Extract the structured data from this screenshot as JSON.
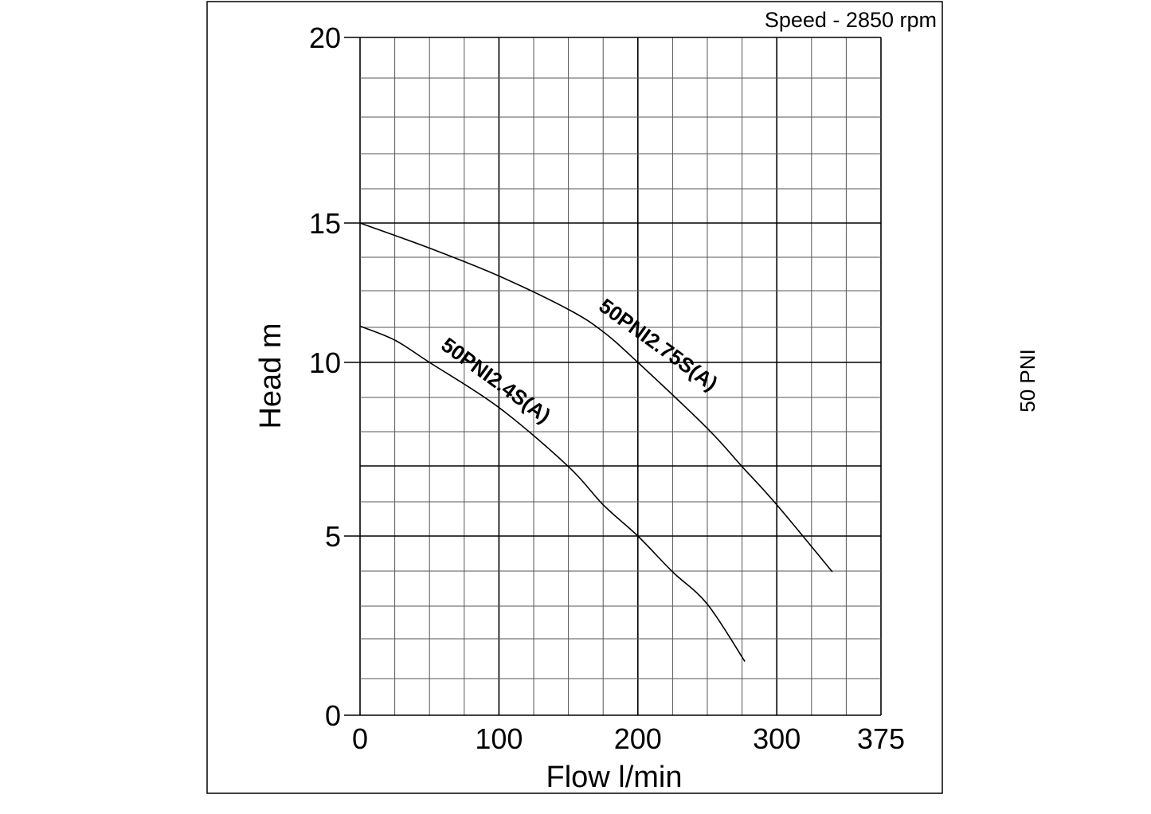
{
  "chart_data": {
    "type": "line",
    "title": "",
    "annotation": "Speed - 2850 rpm",
    "side_label": "50 PNI",
    "xlabel": "Flow l/min",
    "ylabel": "Head m",
    "xlim": [
      0,
      375
    ],
    "ylim": [
      0,
      20
    ],
    "x_ticks": [
      "0",
      "100",
      "200",
      "300",
      "375"
    ],
    "x_tick_values": [
      0,
      100,
      200,
      300,
      375
    ],
    "y_ticks": [
      "0",
      "5",
      "10",
      "15",
      "20"
    ],
    "y_tick_values": [
      0,
      5,
      10,
      15,
      20
    ],
    "grid": true,
    "series": [
      {
        "name": "50PNI2.75S(A)",
        "x": [
          0,
          50,
          100,
          150,
          175,
          200,
          250,
          275,
          300,
          340
        ],
        "y": [
          15.0,
          14.1,
          13.1,
          11.9,
          11.1,
          10.0,
          8.1,
          7.0,
          5.9,
          4.0
        ]
      },
      {
        "name": "50PNI2.4S(A)",
        "x": [
          0,
          25,
          50,
          100,
          150,
          175,
          200,
          225,
          250,
          277
        ],
        "y": [
          11.3,
          10.8,
          10.0,
          8.7,
          7.0,
          5.9,
          5.0,
          4.0,
          3.1,
          1.5
        ]
      }
    ]
  }
}
